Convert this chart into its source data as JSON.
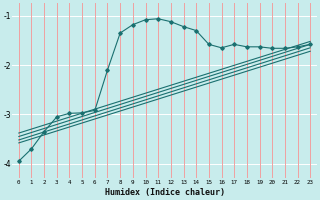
{
  "xlabel": "Humidex (Indice chaleur)",
  "bg_color": "#c8ecec",
  "vgrid_color": "#f0a0a0",
  "hgrid_color": "#ffffff",
  "line_color": "#1a7070",
  "xlim": [
    -0.5,
    23.5
  ],
  "ylim": [
    -4.3,
    -0.75
  ],
  "yticks": [
    -4,
    -3,
    -2,
    -1
  ],
  "xticks": [
    0,
    1,
    2,
    3,
    4,
    5,
    6,
    7,
    8,
    9,
    10,
    11,
    12,
    13,
    14,
    15,
    16,
    17,
    18,
    19,
    20,
    21,
    22,
    23
  ],
  "jagged_x": [
    0,
    1,
    2,
    3,
    4,
    5,
    6,
    7,
    8,
    9,
    10,
    11,
    12,
    13,
    14,
    15,
    16,
    17,
    18,
    19,
    20,
    21,
    22,
    23
  ],
  "jagged_y": [
    -3.95,
    -3.7,
    -3.35,
    -3.05,
    -2.98,
    -2.97,
    -2.92,
    -2.1,
    -1.35,
    -1.18,
    -1.08,
    -1.06,
    -1.12,
    -1.22,
    -1.3,
    -1.58,
    -1.65,
    -1.58,
    -1.63,
    -1.63,
    -1.66,
    -1.66,
    -1.63,
    -1.58
  ],
  "smooth_lines": [
    {
      "x": [
        0,
        23
      ],
      "y": [
        -3.38,
        -1.52
      ]
    },
    {
      "x": [
        0,
        23
      ],
      "y": [
        -3.45,
        -1.58
      ]
    },
    {
      "x": [
        0,
        23
      ],
      "y": [
        -3.52,
        -1.65
      ]
    },
    {
      "x": [
        0,
        23
      ],
      "y": [
        -3.58,
        -1.72
      ]
    }
  ]
}
